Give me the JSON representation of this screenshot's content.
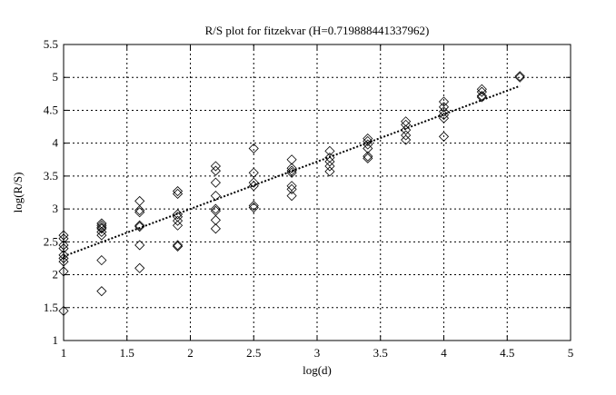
{
  "chart_data": {
    "type": "scatter",
    "title": "R/S plot for fitzekvar (H=0.719888441337962)",
    "xlabel": "log(d)",
    "ylabel": "log(R/S)",
    "xlim": [
      1,
      5
    ],
    "ylim": [
      1,
      5.5
    ],
    "xticks": [
      "1",
      "1.5",
      "2",
      "2.5",
      "3",
      "3.5",
      "4",
      "4.5",
      "5"
    ],
    "yticks": [
      "1",
      "1.5",
      "2",
      "2.5",
      "3",
      "3.5",
      "4",
      "4.5",
      "5",
      "5.5"
    ],
    "grid": true,
    "marker": "diamond",
    "points": [
      {
        "x": 1.0,
        "y": [
          2.6,
          2.55,
          2.45,
          2.4,
          2.3,
          2.25,
          2.2,
          2.05,
          1.45
        ]
      },
      {
        "x": 1.3,
        "y": [
          2.78,
          2.75,
          2.72,
          2.7,
          2.65,
          2.6,
          2.22,
          1.75
        ]
      },
      {
        "x": 1.6,
        "y": [
          3.12,
          2.98,
          2.95,
          2.75,
          2.73,
          2.45,
          2.1
        ]
      },
      {
        "x": 1.9,
        "y": [
          3.27,
          3.23,
          2.92,
          2.88,
          2.82,
          2.75,
          2.45,
          2.43
        ]
      },
      {
        "x": 2.2,
        "y": [
          3.65,
          3.58,
          3.4,
          3.2,
          3.0,
          2.97,
          2.83,
          2.7
        ]
      },
      {
        "x": 2.5,
        "y": [
          3.92,
          3.55,
          3.4,
          3.35,
          3.05,
          3.02
        ]
      },
      {
        "x": 2.8,
        "y": [
          3.75,
          3.62,
          3.58,
          3.55,
          3.35,
          3.3,
          3.2
        ]
      },
      {
        "x": 3.1,
        "y": [
          3.88,
          3.78,
          3.72,
          3.65,
          3.57
        ]
      },
      {
        "x": 3.4,
        "y": [
          4.07,
          4.03,
          3.98,
          3.92,
          3.8,
          3.77
        ]
      },
      {
        "x": 3.7,
        "y": [
          4.33,
          4.28,
          4.2,
          4.12,
          4.05
        ]
      },
      {
        "x": 4.0,
        "y": [
          4.63,
          4.55,
          4.48,
          4.43,
          4.38,
          4.1
        ]
      },
      {
        "x": 4.3,
        "y": [
          4.82,
          4.78,
          4.72,
          4.7
        ]
      },
      {
        "x": 4.6,
        "y": [
          5.02,
          5.0
        ]
      }
    ],
    "fit_line": {
      "style": "dotted",
      "slope": 0.719888441337962,
      "x": [
        1.0,
        4.6
      ],
      "y": [
        2.28,
        4.87
      ]
    }
  }
}
